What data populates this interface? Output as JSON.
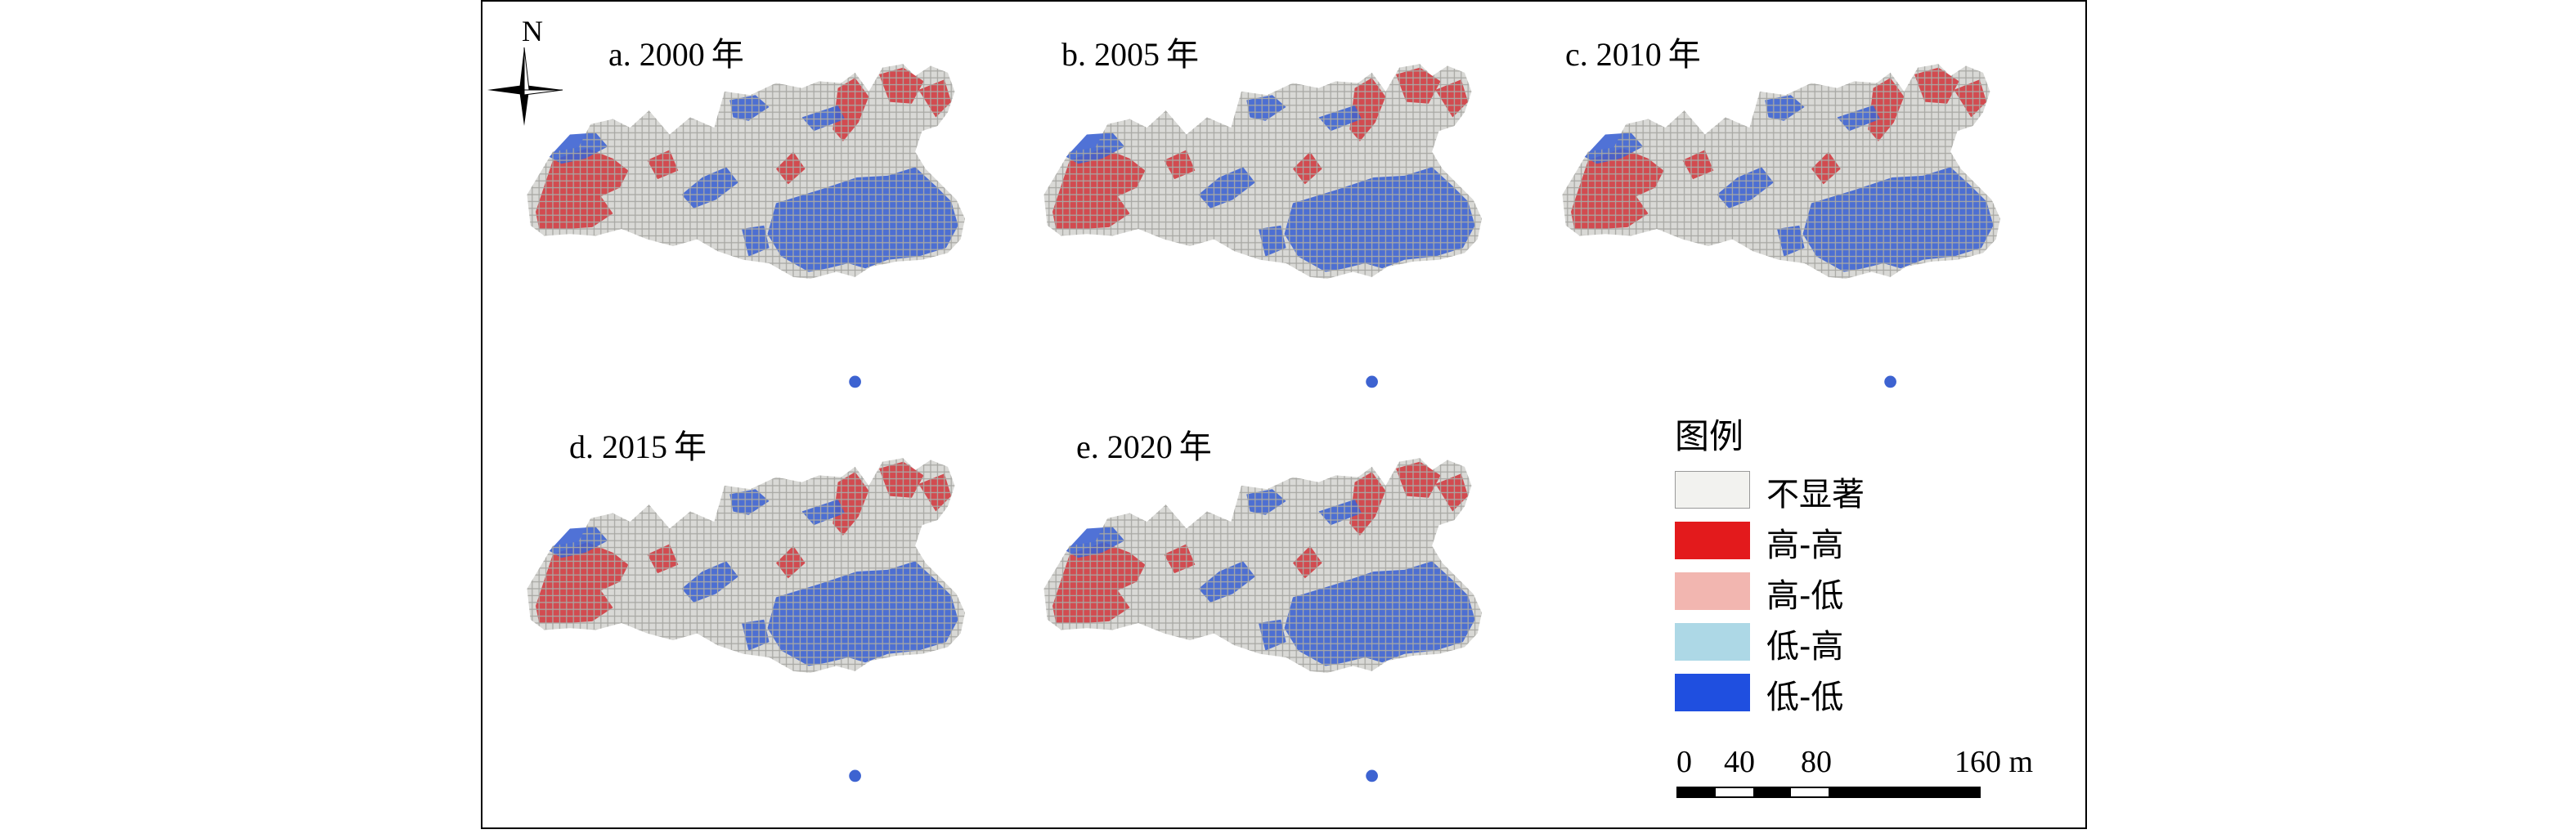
{
  "north": {
    "label": "N"
  },
  "panels": [
    {
      "label": "a. 2000",
      "suffix": "年"
    },
    {
      "label": "b. 2005",
      "suffix": "年"
    },
    {
      "label": "c. 2010",
      "suffix": "年"
    },
    {
      "label": "d. 2015",
      "suffix": "年"
    },
    {
      "label": "e. 2020",
      "suffix": "年"
    }
  ],
  "legend": {
    "title": "图例",
    "items": [
      {
        "label": "不显著",
        "color": "#f2f2ef"
      },
      {
        "label": "高-高",
        "color": "#e31a1c"
      },
      {
        "label": "高-低",
        "color": "#f2b6b0"
      },
      {
        "label": "低-高",
        "color": "#add8e6"
      },
      {
        "label": "低-低",
        "color": "#1f4fe0"
      }
    ]
  },
  "scale": {
    "ticks": [
      "0",
      "40",
      "80",
      "160 m"
    ]
  },
  "colors": {
    "grid_fill": "#d9d9d6",
    "grid_line": "#a8a8a4",
    "hh": "#d0373e",
    "ll": "#3d63d1"
  }
}
